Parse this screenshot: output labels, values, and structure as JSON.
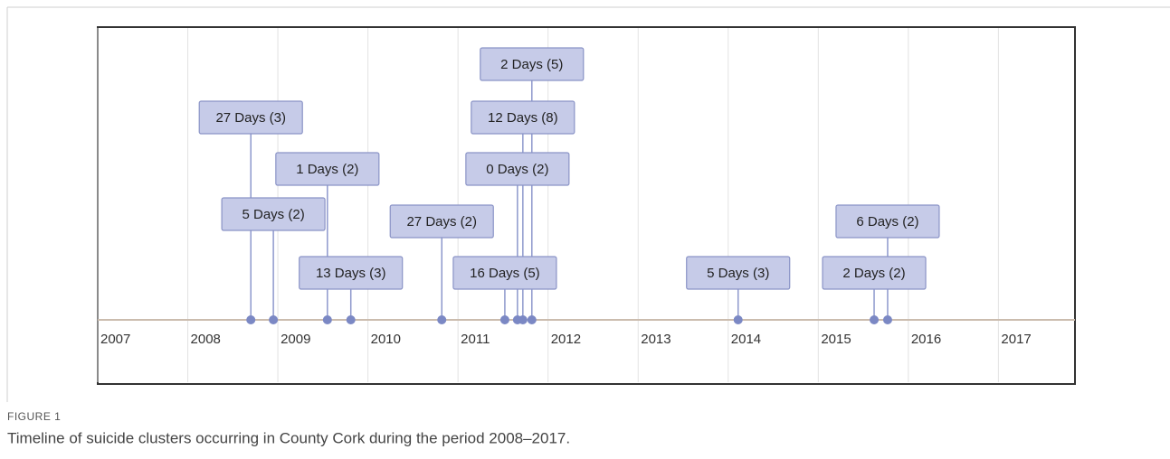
{
  "chart_data": {
    "type": "timeline",
    "xlim": [
      2007,
      2017.85
    ],
    "xticks": [
      2007,
      2008,
      2009,
      2010,
      2011,
      2012,
      2013,
      2014,
      2015,
      2016,
      2017
    ],
    "grid": true,
    "color": "#7b88c4",
    "events": [
      {
        "x": 2008.7,
        "label": "27 Days (3)"
      },
      {
        "x": 2008.95,
        "label": "5 Days (2)"
      },
      {
        "x": 2009.55,
        "label": "1 Days (2)"
      },
      {
        "x": 2009.81,
        "label": "13 Days (3)"
      },
      {
        "x": 2010.82,
        "label": "27 Days (2)"
      },
      {
        "x": 2011.52,
        "label": "16 Days (5)"
      },
      {
        "x": 2011.66,
        "label": "0 Days (2)"
      },
      {
        "x": 2011.72,
        "label": "12 Days (8)"
      },
      {
        "x": 2011.82,
        "label": "2 Days (5)"
      },
      {
        "x": 2014.11,
        "label": "5 Days (3)"
      },
      {
        "x": 2015.62,
        "label": "2 Days (2)"
      },
      {
        "x": 2015.77,
        "label": "6 Days (2)"
      }
    ]
  },
  "figure": {
    "label": "FIGURE 1",
    "caption": "Timeline of suicide clusters occurring in County Cork during the period 2008–2017."
  }
}
